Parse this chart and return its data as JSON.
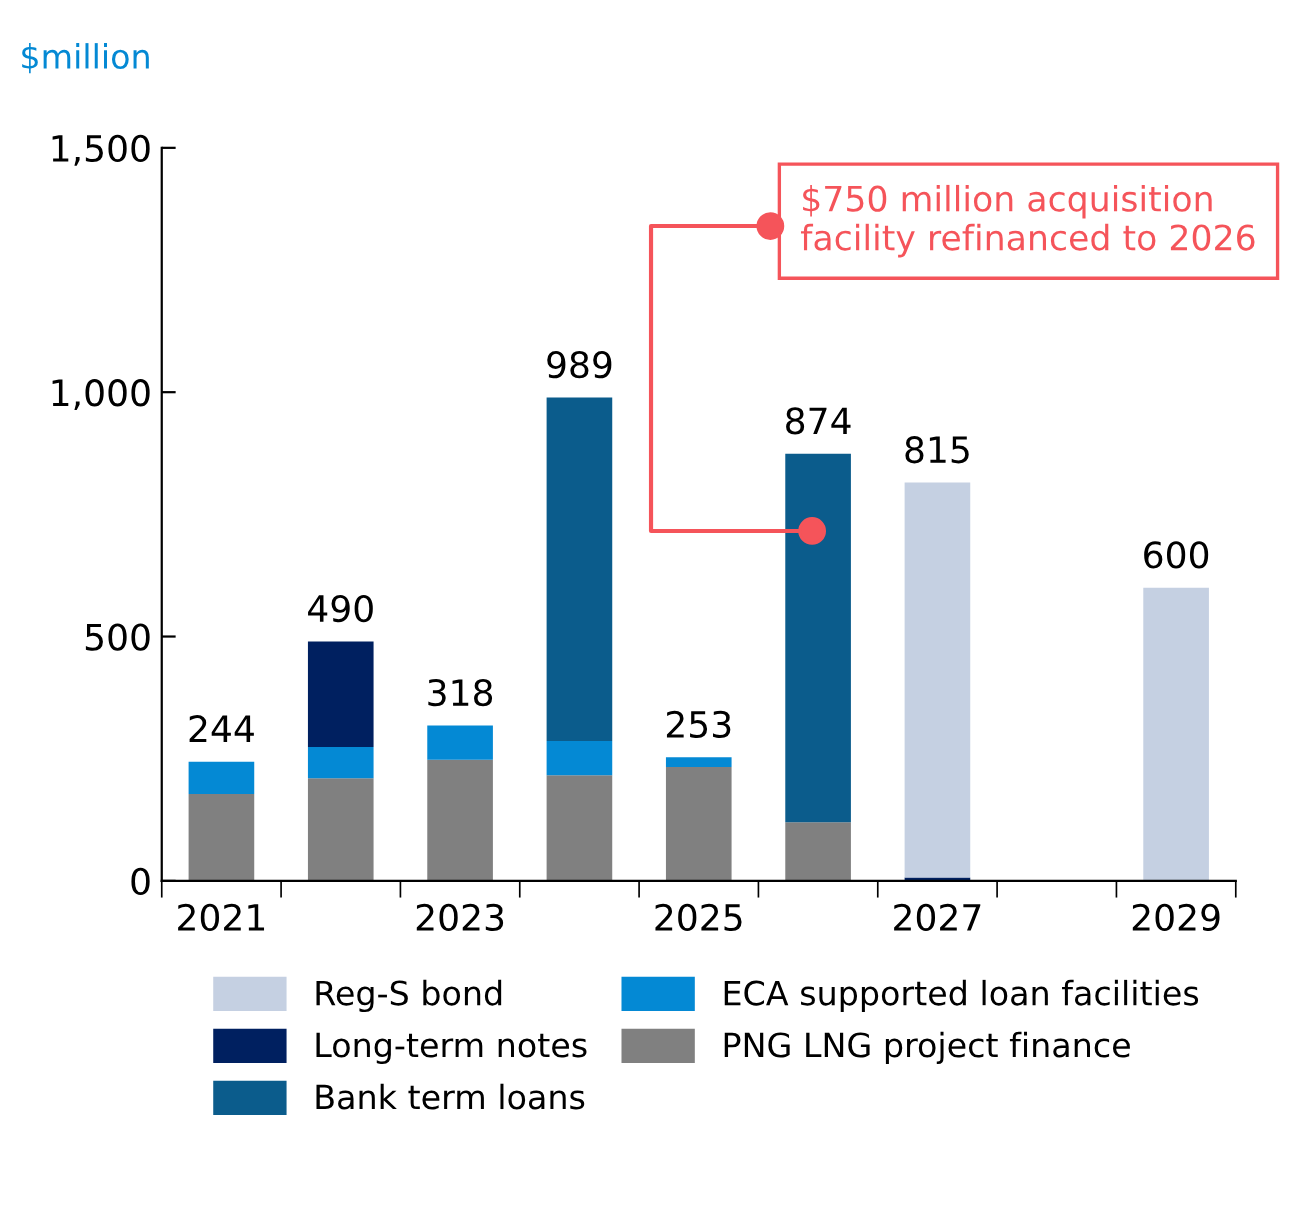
{
  "chart_data": {
    "type": "bar",
    "stacked": true,
    "ylabel": "$million",
    "categories": [
      "2021",
      null,
      "2023",
      null,
      "2025",
      null,
      "2027",
      null,
      "2029"
    ],
    "series": [
      {
        "name": "PNG LNG project finance",
        "color": "#808080",
        "values": [
          178,
          210,
          248,
          216,
          233,
          120,
          null,
          null,
          null
        ]
      },
      {
        "name": "ECA supported loan facilities",
        "color": "#0489d4",
        "values": [
          66,
          64,
          70,
          70,
          20,
          null,
          null,
          null,
          null
        ]
      },
      {
        "name": "Long-term notes",
        "color": "#002060",
        "values": [
          null,
          216,
          null,
          null,
          null,
          null,
          7,
          null,
          null
        ]
      },
      {
        "name": "Bank term loans",
        "color": "#0b5c8c",
        "values": [
          null,
          null,
          null,
          703,
          null,
          754,
          null,
          null,
          null
        ]
      },
      {
        "name": "Reg-S bond",
        "color": "#c5d0e2",
        "values": [
          null,
          null,
          null,
          null,
          null,
          null,
          808,
          null,
          600
        ]
      }
    ],
    "totals": [
      "244",
      "490",
      "318",
      "989",
      "253",
      "874",
      "815",
      null,
      "600"
    ],
    "ylim": [
      0,
      1500
    ],
    "yticks": [
      0,
      500,
      {
        "value": 1000,
        "label": "1,000"
      },
      {
        "value": 1500,
        "label": "1,500"
      }
    ],
    "grid": false,
    "legend": "bottom",
    "annotations": [
      "$750 million acquisition facility refinanced to 2026"
    ]
  }
}
